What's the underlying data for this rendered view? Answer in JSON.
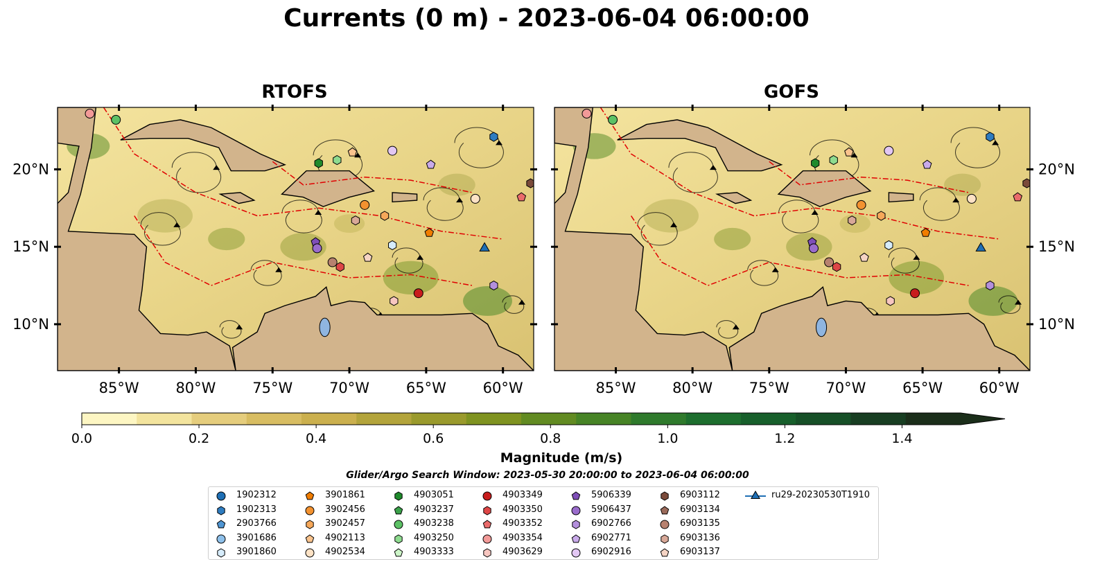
{
  "figure": {
    "title": "Currents (0 m) - 2023-06-04 06:00:00",
    "panels": [
      "RTOFS",
      "GOFS"
    ],
    "search_window": "Glider/Argo Search Window: 2023-05-30 20:00:00 to 2023-06-04 06:00:00"
  },
  "colors": {
    "land": "#d2b48c",
    "water_low": "#fdf6c3",
    "water_mid": "#c9b860",
    "water_high": "#3e8b2c",
    "eez_line": "#e00000",
    "streamline": "#000000"
  },
  "chart_data": {
    "type": "heatmap",
    "map_extent": {
      "lon": [
        -89.0,
        -58.0
      ],
      "lat": [
        7.0,
        24.0
      ]
    },
    "x_ticks": [
      "85°W",
      "80°W",
      "75°W",
      "70°W",
      "65°W",
      "60°W"
    ],
    "x_tick_values": [
      -85,
      -80,
      -75,
      -70,
      -65,
      -60
    ],
    "y_ticks": [
      "20°N",
      "15°N",
      "10°N"
    ],
    "y_tick_values": [
      20,
      15,
      10
    ],
    "colorbar": {
      "label": "Magnitude (m/s)",
      "range": [
        0.0,
        1.5
      ],
      "extend": "max",
      "ticks": [
        "0.0",
        "0.2",
        "0.4",
        "0.6",
        "0.8",
        "1.0",
        "1.2",
        "1.4"
      ],
      "tick_values": [
        0.0,
        0.2,
        0.4,
        0.6,
        0.8,
        1.0,
        1.2,
        1.4
      ],
      "colors": [
        "#fdf6c3",
        "#f3e49e",
        "#e5cd7d",
        "#d8bd62",
        "#cbb04e",
        "#b3a43b",
        "#9a9a2c",
        "#7f9320",
        "#628b22",
        "#478426",
        "#2f7a2c",
        "#1d6e2e",
        "#175f2b",
        "#164f27",
        "#183e22",
        "#1b2e1a"
      ]
    },
    "observations": [
      {
        "id": "1902312",
        "marker": "circle",
        "color": "#1f6fb5",
        "lon": null,
        "lat": null
      },
      {
        "id": "1902313",
        "marker": "hexagon",
        "color": "#2e7cc0",
        "lon": -60.6,
        "lat": 22.1
      },
      {
        "id": "2903766",
        "marker": "pentagon",
        "color": "#4f95d2",
        "lon": null,
        "lat": null
      },
      {
        "id": "3901686",
        "marker": "circle",
        "color": "#8ec0ea",
        "lon": null,
        "lat": null
      },
      {
        "id": "3901860",
        "marker": "hexagon",
        "color": "#d6ecfb",
        "lon": -67.2,
        "lat": 15.1
      },
      {
        "id": "3901861",
        "marker": "pentagon",
        "color": "#f07d00",
        "lon": -64.8,
        "lat": 15.9
      },
      {
        "id": "3902456",
        "marker": "circle",
        "color": "#f39230",
        "lon": -69.0,
        "lat": 17.7
      },
      {
        "id": "3902457",
        "marker": "hexagon",
        "color": "#f6a85a",
        "lon": -67.7,
        "lat": 17.0
      },
      {
        "id": "4902113",
        "marker": "pentagon",
        "color": "#f9c38d",
        "lon": -69.8,
        "lat": 21.1
      },
      {
        "id": "4902534",
        "marker": "circle",
        "color": "#fde2c5",
        "lon": -61.8,
        "lat": 18.1
      },
      {
        "id": "4903051",
        "marker": "hexagon",
        "color": "#1f8a2c",
        "lon": -72.0,
        "lat": 20.4
      },
      {
        "id": "4903237",
        "marker": "pentagon",
        "color": "#3aa14a",
        "lon": null,
        "lat": null
      },
      {
        "id": "4903238",
        "marker": "circle",
        "color": "#5cc165",
        "lon": -85.2,
        "lat": 23.2
      },
      {
        "id": "4903250",
        "marker": "hexagon",
        "color": "#8edb8f",
        "lon": -70.8,
        "lat": 20.6
      },
      {
        "id": "4903333",
        "marker": "pentagon",
        "color": "#cdf5c8",
        "lon": null,
        "lat": null
      },
      {
        "id": "4903349",
        "marker": "circle",
        "color": "#c81d1d",
        "lon": -65.5,
        "lat": 12.0
      },
      {
        "id": "4903350",
        "marker": "hexagon",
        "color": "#de4646",
        "lon": -70.6,
        "lat": 13.7
      },
      {
        "id": "4903352",
        "marker": "pentagon",
        "color": "#ea6b6b",
        "lon": -58.8,
        "lat": 18.2
      },
      {
        "id": "4903354",
        "marker": "circle",
        "color": "#f29a98",
        "lon": -86.9,
        "lat": 23.6
      },
      {
        "id": "4903629",
        "marker": "hexagon",
        "color": "#f7c6c0",
        "lon": -67.1,
        "lat": 11.5
      },
      {
        "id": "5906339",
        "marker": "pentagon",
        "color": "#7f4fb8",
        "lon": -72.2,
        "lat": 15.3
      },
      {
        "id": "5906437",
        "marker": "circle",
        "color": "#9a6ccc",
        "lon": -72.1,
        "lat": 14.9
      },
      {
        "id": "6902766",
        "marker": "hexagon",
        "color": "#b38fdc",
        "lon": -60.6,
        "lat": 12.5
      },
      {
        "id": "6902771",
        "marker": "pentagon",
        "color": "#c9aaea",
        "lon": -64.7,
        "lat": 20.3
      },
      {
        "id": "6902916",
        "marker": "circle",
        "color": "#e2c7f3",
        "lon": -67.2,
        "lat": 21.2
      },
      {
        "id": "6903112",
        "marker": "hexagon",
        "color": "#7a4a3a",
        "lon": -58.2,
        "lat": 19.1
      },
      {
        "id": "6903134",
        "marker": "pentagon",
        "color": "#9a6a5a",
        "lon": null,
        "lat": null
      },
      {
        "id": "6903135",
        "marker": "circle",
        "color": "#b7816f",
        "lon": -71.1,
        "lat": 14.0
      },
      {
        "id": "6903136",
        "marker": "hexagon",
        "color": "#d8a898",
        "lon": -69.6,
        "lat": 16.7
      },
      {
        "id": "6903137",
        "marker": "pentagon",
        "color": "#f5d4c4",
        "lon": -68.8,
        "lat": 14.3
      },
      {
        "id": "ru29-20230530T1910",
        "marker": "triangle",
        "color": "#1f6fb5",
        "lon": -61.2,
        "lat": 14.9
      }
    ]
  }
}
